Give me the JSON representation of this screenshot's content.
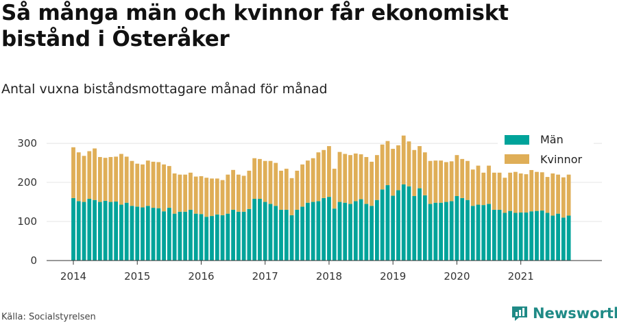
{
  "title": "Så många män och kvinnor får ekonomiskt bistånd i Österåker",
  "subtitle": "Antal vuxna biståndsmottagare månad för månad",
  "source": "Källa: Socialstyrelsen",
  "brand": {
    "name": "Newsworthy",
    "icon": "newsworthy-logo-icon"
  },
  "colors": {
    "men": "#00a39a",
    "women": "#dfae57",
    "grid": "#e4e4e4",
    "axis": "#333333"
  },
  "chart_data": {
    "type": "bar",
    "stacked": true,
    "x_start": "2014-01",
    "x_tick_labels": [
      "2014",
      "2015",
      "2016",
      "2017",
      "2018",
      "2019",
      "2020",
      "2021"
    ],
    "y_ticks": [
      0,
      100,
      200,
      300
    ],
    "ylim": [
      0,
      330
    ],
    "grid": true,
    "legend": {
      "position": "top-right"
    },
    "series": [
      {
        "name": "Män",
        "color": "#00a39a",
        "values": [
          160,
          152,
          150,
          158,
          155,
          150,
          153,
          150,
          151,
          143,
          148,
          140,
          138,
          136,
          140,
          135,
          134,
          126,
          135,
          120,
          125,
          125,
          130,
          120,
          119,
          112,
          114,
          118,
          116,
          120,
          130,
          125,
          125,
          132,
          158,
          158,
          150,
          145,
          140,
          130,
          130,
          116,
          130,
          138,
          148,
          150,
          152,
          160,
          163,
          133,
          150,
          148,
          145,
          152,
          157,
          145,
          140,
          155,
          182,
          193,
          166,
          180,
          195,
          190,
          165,
          185,
          167,
          145,
          148,
          148,
          150,
          152,
          165,
          160,
          155,
          140,
          143,
          142,
          145,
          130,
          130,
          122,
          127,
          122,
          123,
          123,
          126,
          127,
          128,
          122,
          115,
          120,
          110,
          115
        ]
      },
      {
        "name": "Kvinnor",
        "color": "#dfae57",
        "values": [
          130,
          125,
          118,
          122,
          132,
          115,
          110,
          115,
          115,
          130,
          118,
          115,
          110,
          110,
          116,
          118,
          118,
          120,
          107,
          103,
          95,
          95,
          95,
          95,
          97,
          100,
          96,
          92,
          90,
          100,
          102,
          95,
          92,
          98,
          104,
          102,
          105,
          110,
          110,
          100,
          105,
          95,
          100,
          108,
          108,
          112,
          125,
          123,
          130,
          102,
          128,
          125,
          125,
          122,
          115,
          120,
          113,
          115,
          115,
          113,
          120,
          115,
          125,
          115,
          118,
          108,
          110,
          110,
          108,
          108,
          102,
          102,
          105,
          100,
          100,
          93,
          100,
          83,
          98,
          95,
          95,
          90,
          98,
          105,
          100,
          98,
          110,
          100,
          98,
          92,
          108,
          100,
          103,
          105
        ]
      }
    ]
  }
}
